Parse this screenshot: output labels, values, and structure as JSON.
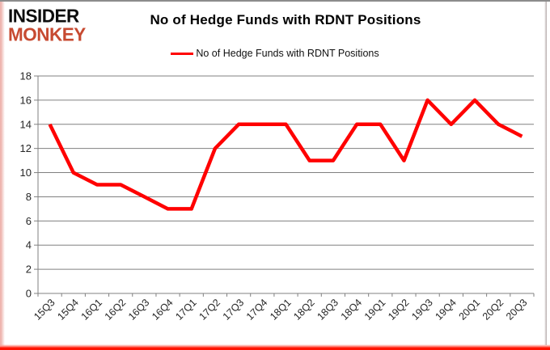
{
  "logo": {
    "line1": "INSIDER",
    "line2": "MONKEY"
  },
  "header": {
    "title": "No of Hedge Funds with RDNT Positions"
  },
  "legend": {
    "label": "No of Hedge Funds with RDNT Positions"
  },
  "colors": {
    "series_line": "#ff0000",
    "grid": "#808080",
    "axis": "#808080",
    "tick_text": "#262626",
    "title_text": "#000000",
    "logo_accent": "#c74a31"
  },
  "chart_data": {
    "type": "line",
    "title": "No of Hedge Funds with RDNT Positions",
    "categories": [
      "15Q3",
      "15Q4",
      "16Q1",
      "16Q2",
      "16Q3",
      "16Q4",
      "17Q1",
      "17Q2",
      "17Q3",
      "17Q4",
      "18Q1",
      "18Q2",
      "18Q3",
      "18Q4",
      "19Q1",
      "19Q2",
      "19Q3",
      "19Q4",
      "20Q1",
      "20Q2",
      "20Q3"
    ],
    "series": [
      {
        "name": "No of Hedge Funds with RDNT Positions",
        "color": "#ff0000",
        "values": [
          14,
          10,
          9,
          9,
          8,
          7,
          7,
          12,
          14,
          14,
          14,
          11,
          11,
          14,
          14,
          11,
          16,
          14,
          16,
          14,
          13
        ]
      }
    ],
    "xlabel": "",
    "ylabel": "",
    "ylim": [
      0,
      18
    ],
    "ytick_step": 2,
    "grid": true,
    "legend_position": "top-center"
  }
}
